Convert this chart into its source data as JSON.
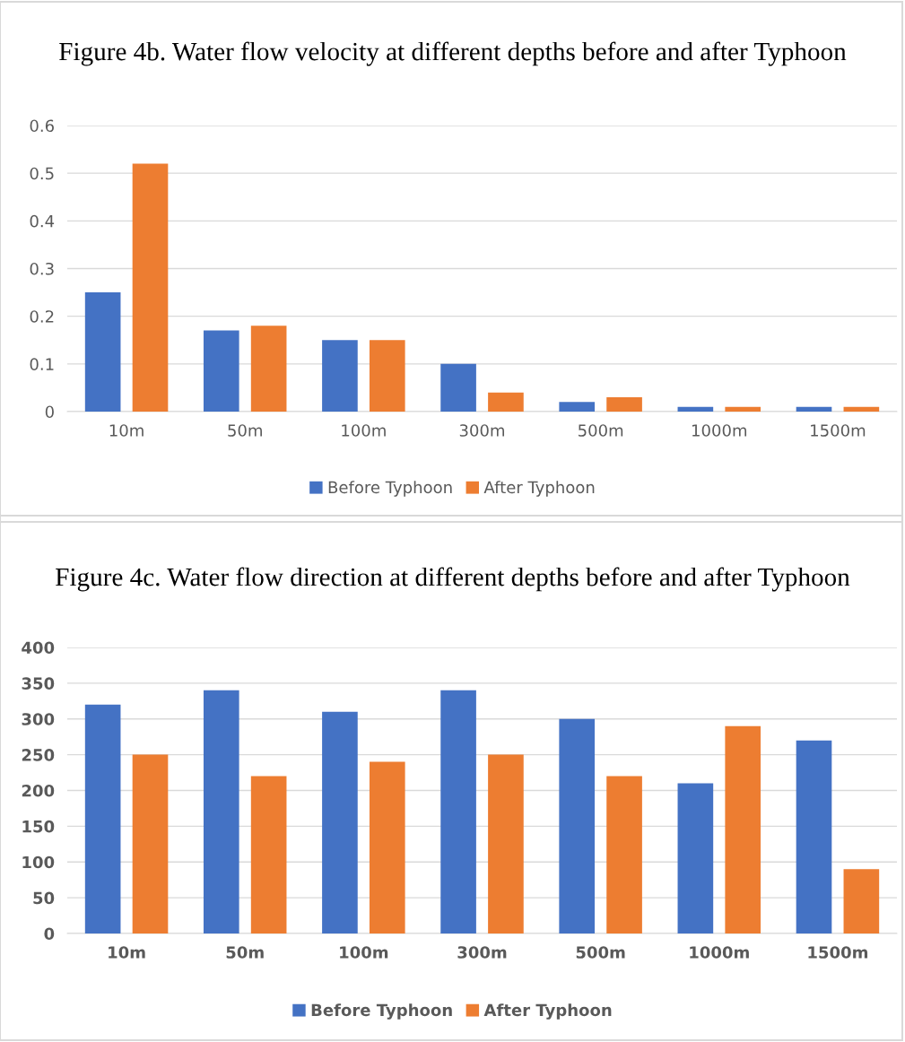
{
  "chart_data": [
    {
      "type": "bar",
      "title": "Figure 4b. Water flow velocity at different depths before and after Typhoon",
      "categories": [
        "10m",
        "50m",
        "100m",
        "300m",
        "500m",
        "1000m",
        "1500m"
      ],
      "series": [
        {
          "name": "Before Typhoon",
          "color": "#4472c4",
          "values": [
            0.25,
            0.17,
            0.15,
            0.1,
            0.02,
            0.01,
            0.01
          ]
        },
        {
          "name": "After Typhoon",
          "color": "#ed7d31",
          "values": [
            0.52,
            0.18,
            0.15,
            0.04,
            0.03,
            0.01,
            0.01
          ]
        }
      ],
      "ylim": [
        0,
        0.6
      ],
      "yticks": [
        0,
        0.1,
        0.2,
        0.3,
        0.4,
        0.5,
        0.6
      ],
      "grid": "y",
      "legend": "bottom"
    },
    {
      "type": "bar",
      "title": "Figure 4c. Water flow direction at different depths before and after Typhoon",
      "categories": [
        "10m",
        "50m",
        "100m",
        "300m",
        "500m",
        "1000m",
        "1500m"
      ],
      "series": [
        {
          "name": "Before Typhoon",
          "color": "#4472c4",
          "values": [
            320,
            340,
            310,
            340,
            300,
            210,
            270
          ]
        },
        {
          "name": "After Typhoon",
          "color": "#ed7d31",
          "values": [
            250,
            220,
            240,
            250,
            220,
            290,
            90
          ]
        }
      ],
      "ylim": [
        0,
        400
      ],
      "yticks": [
        0,
        50,
        100,
        150,
        200,
        250,
        300,
        350,
        400
      ],
      "grid": "y",
      "legend": "bottom"
    }
  ]
}
